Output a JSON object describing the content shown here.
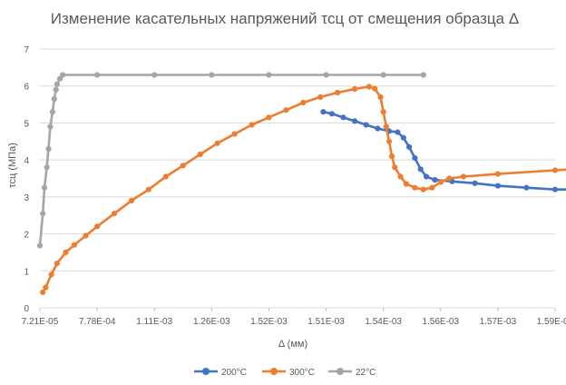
{
  "chart_data": {
    "type": "scatter",
    "title": "Изменение касательных напряжений τсц от смещения образца Δ",
    "xlabel": "Δ (мм)",
    "ylabel": "τсц (МПа)",
    "ylim": [
      0,
      7
    ],
    "y_ticks": [
      "0",
      "1",
      "2",
      "3",
      "4",
      "5",
      "6",
      "7"
    ],
    "x_tick_labels": [
      "7.21E-05",
      "7.78E-04",
      "1.11E-03",
      "1.26E-03",
      "1.52E-03",
      "1.51E-03",
      "1.54E-03",
      "1.56E-03",
      "1.57E-03",
      "1.59E-03"
    ],
    "grid": "horizontal",
    "legend_position": "bottom",
    "series": [
      {
        "name": "200°C",
        "color": "#4472C4",
        "points": [
          [
            4.95,
            5.3
          ],
          [
            5.1,
            5.25
          ],
          [
            5.3,
            5.15
          ],
          [
            5.5,
            5.05
          ],
          [
            5.7,
            4.95
          ],
          [
            5.9,
            4.85
          ],
          [
            6.1,
            4.78
          ],
          [
            6.25,
            4.75
          ],
          [
            6.35,
            4.6
          ],
          [
            6.45,
            4.35
          ],
          [
            6.55,
            4.05
          ],
          [
            6.65,
            3.75
          ],
          [
            6.75,
            3.55
          ],
          [
            6.9,
            3.46
          ],
          [
            7.2,
            3.42
          ],
          [
            7.6,
            3.37
          ],
          [
            8.0,
            3.3
          ],
          [
            8.5,
            3.25
          ],
          [
            9.0,
            3.2
          ],
          [
            9.3,
            3.2
          ],
          [
            9.8,
            3.24
          ],
          [
            10.4,
            3.28
          ],
          [
            11.0,
            3.33
          ],
          [
            11.6,
            3.38
          ],
          [
            12.2,
            3.42
          ],
          [
            12.8,
            3.48
          ],
          [
            13.2,
            3.52
          ]
        ]
      },
      {
        "name": "300°C",
        "color": "#ED7D31",
        "points": [
          [
            0.05,
            0.42
          ],
          [
            0.1,
            0.55
          ],
          [
            0.2,
            0.9
          ],
          [
            0.3,
            1.2
          ],
          [
            0.45,
            1.5
          ],
          [
            0.6,
            1.7
          ],
          [
            0.8,
            1.95
          ],
          [
            1.0,
            2.2
          ],
          [
            1.3,
            2.55
          ],
          [
            1.6,
            2.9
          ],
          [
            1.9,
            3.2
          ],
          [
            2.2,
            3.55
          ],
          [
            2.5,
            3.85
          ],
          [
            2.8,
            4.15
          ],
          [
            3.1,
            4.45
          ],
          [
            3.4,
            4.7
          ],
          [
            3.7,
            4.95
          ],
          [
            4.0,
            5.15
          ],
          [
            4.3,
            5.35
          ],
          [
            4.6,
            5.55
          ],
          [
            4.9,
            5.7
          ],
          [
            5.2,
            5.82
          ],
          [
            5.5,
            5.92
          ],
          [
            5.75,
            5.98
          ],
          [
            5.85,
            5.93
          ],
          [
            5.95,
            5.7
          ],
          [
            6.0,
            5.3
          ],
          [
            6.05,
            4.9
          ],
          [
            6.1,
            4.5
          ],
          [
            6.15,
            4.1
          ],
          [
            6.2,
            3.8
          ],
          [
            6.3,
            3.55
          ],
          [
            6.4,
            3.35
          ],
          [
            6.55,
            3.25
          ],
          [
            6.7,
            3.2
          ],
          [
            6.85,
            3.25
          ],
          [
            7.0,
            3.4
          ],
          [
            7.15,
            3.5
          ],
          [
            7.4,
            3.55
          ],
          [
            8.0,
            3.62
          ],
          [
            9.0,
            3.72
          ],
          [
            10.0,
            3.83
          ],
          [
            11.0,
            3.95
          ],
          [
            12.0,
            4.08
          ],
          [
            13.0,
            4.2
          ],
          [
            14.0,
            4.32
          ],
          [
            14.6,
            4.4
          ]
        ]
      },
      {
        "name": "22°C",
        "color": "#A5A5A5",
        "points": [
          [
            0.0,
            1.68
          ],
          [
            0.05,
            2.55
          ],
          [
            0.08,
            3.25
          ],
          [
            0.12,
            3.8
          ],
          [
            0.15,
            4.3
          ],
          [
            0.18,
            4.9
          ],
          [
            0.22,
            5.3
          ],
          [
            0.25,
            5.65
          ],
          [
            0.28,
            5.9
          ],
          [
            0.3,
            6.05
          ],
          [
            0.35,
            6.2
          ],
          [
            0.4,
            6.3
          ],
          [
            1.0,
            6.3
          ],
          [
            2.0,
            6.3
          ],
          [
            3.0,
            6.3
          ],
          [
            4.0,
            6.3
          ],
          [
            5.0,
            6.3
          ],
          [
            6.0,
            6.3
          ],
          [
            6.7,
            6.3
          ]
        ]
      }
    ]
  }
}
